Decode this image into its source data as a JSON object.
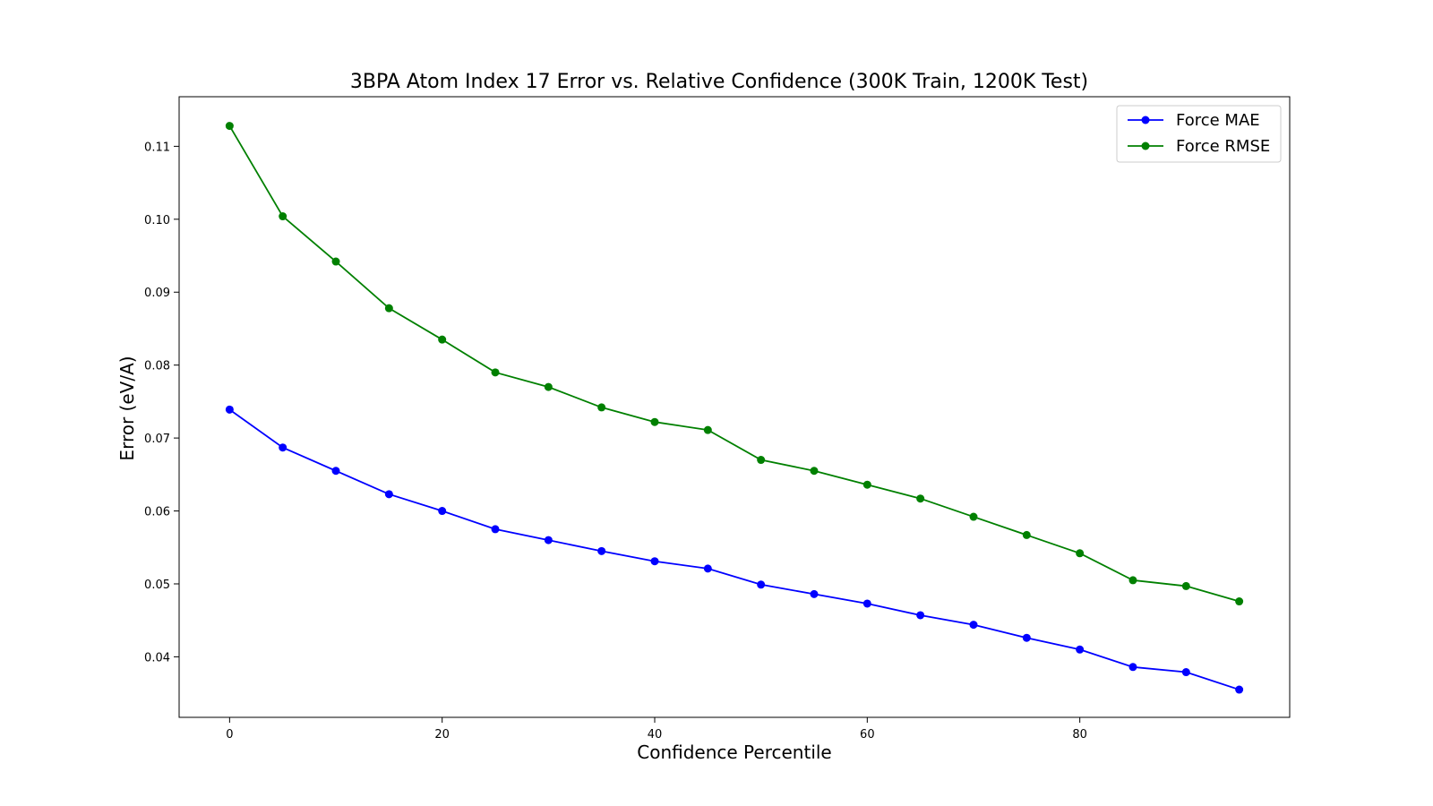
{
  "chart_data": {
    "type": "line",
    "title": "3BPA Atom Index 17 Error vs. Relative Confidence (300K Train, 1200K Test)",
    "xlabel": "Confidence Percentile",
    "ylabel": "Error (eV/A)",
    "x": [
      0,
      5,
      10,
      15,
      20,
      25,
      30,
      35,
      40,
      45,
      50,
      55,
      60,
      65,
      70,
      75,
      80,
      85,
      90,
      95
    ],
    "xlim": [
      -4.75,
      99.75
    ],
    "ylim": [
      0.0317,
      0.1168
    ],
    "xticks": [
      0,
      20,
      40,
      60,
      80
    ],
    "xtick_labels": [
      "0",
      "20",
      "40",
      "60",
      "80"
    ],
    "yticks": [
      0.04,
      0.05,
      0.06,
      0.07,
      0.08,
      0.09,
      0.1,
      0.11
    ],
    "ytick_labels": [
      "0.04",
      "0.05",
      "0.06",
      "0.07",
      "0.08",
      "0.09",
      "0.10",
      "0.11"
    ],
    "grid": false,
    "legend_position": "top-right",
    "series": [
      {
        "name": "Force MAE",
        "color": "#0000ff",
        "marker": "circle",
        "values": [
          0.0739,
          0.0687,
          0.0655,
          0.0623,
          0.06,
          0.0575,
          0.056,
          0.0545,
          0.0531,
          0.0521,
          0.0499,
          0.0486,
          0.0473,
          0.0457,
          0.0444,
          0.0426,
          0.041,
          0.0386,
          0.0379,
          0.0355
        ]
      },
      {
        "name": "Force RMSE",
        "color": "#008000",
        "marker": "circle",
        "values": [
          0.1128,
          0.1004,
          0.0942,
          0.0878,
          0.0835,
          0.079,
          0.077,
          0.0742,
          0.0722,
          0.0711,
          0.067,
          0.0655,
          0.0636,
          0.0617,
          0.0592,
          0.0567,
          0.0542,
          0.0505,
          0.0497,
          0.0476
        ]
      }
    ]
  }
}
